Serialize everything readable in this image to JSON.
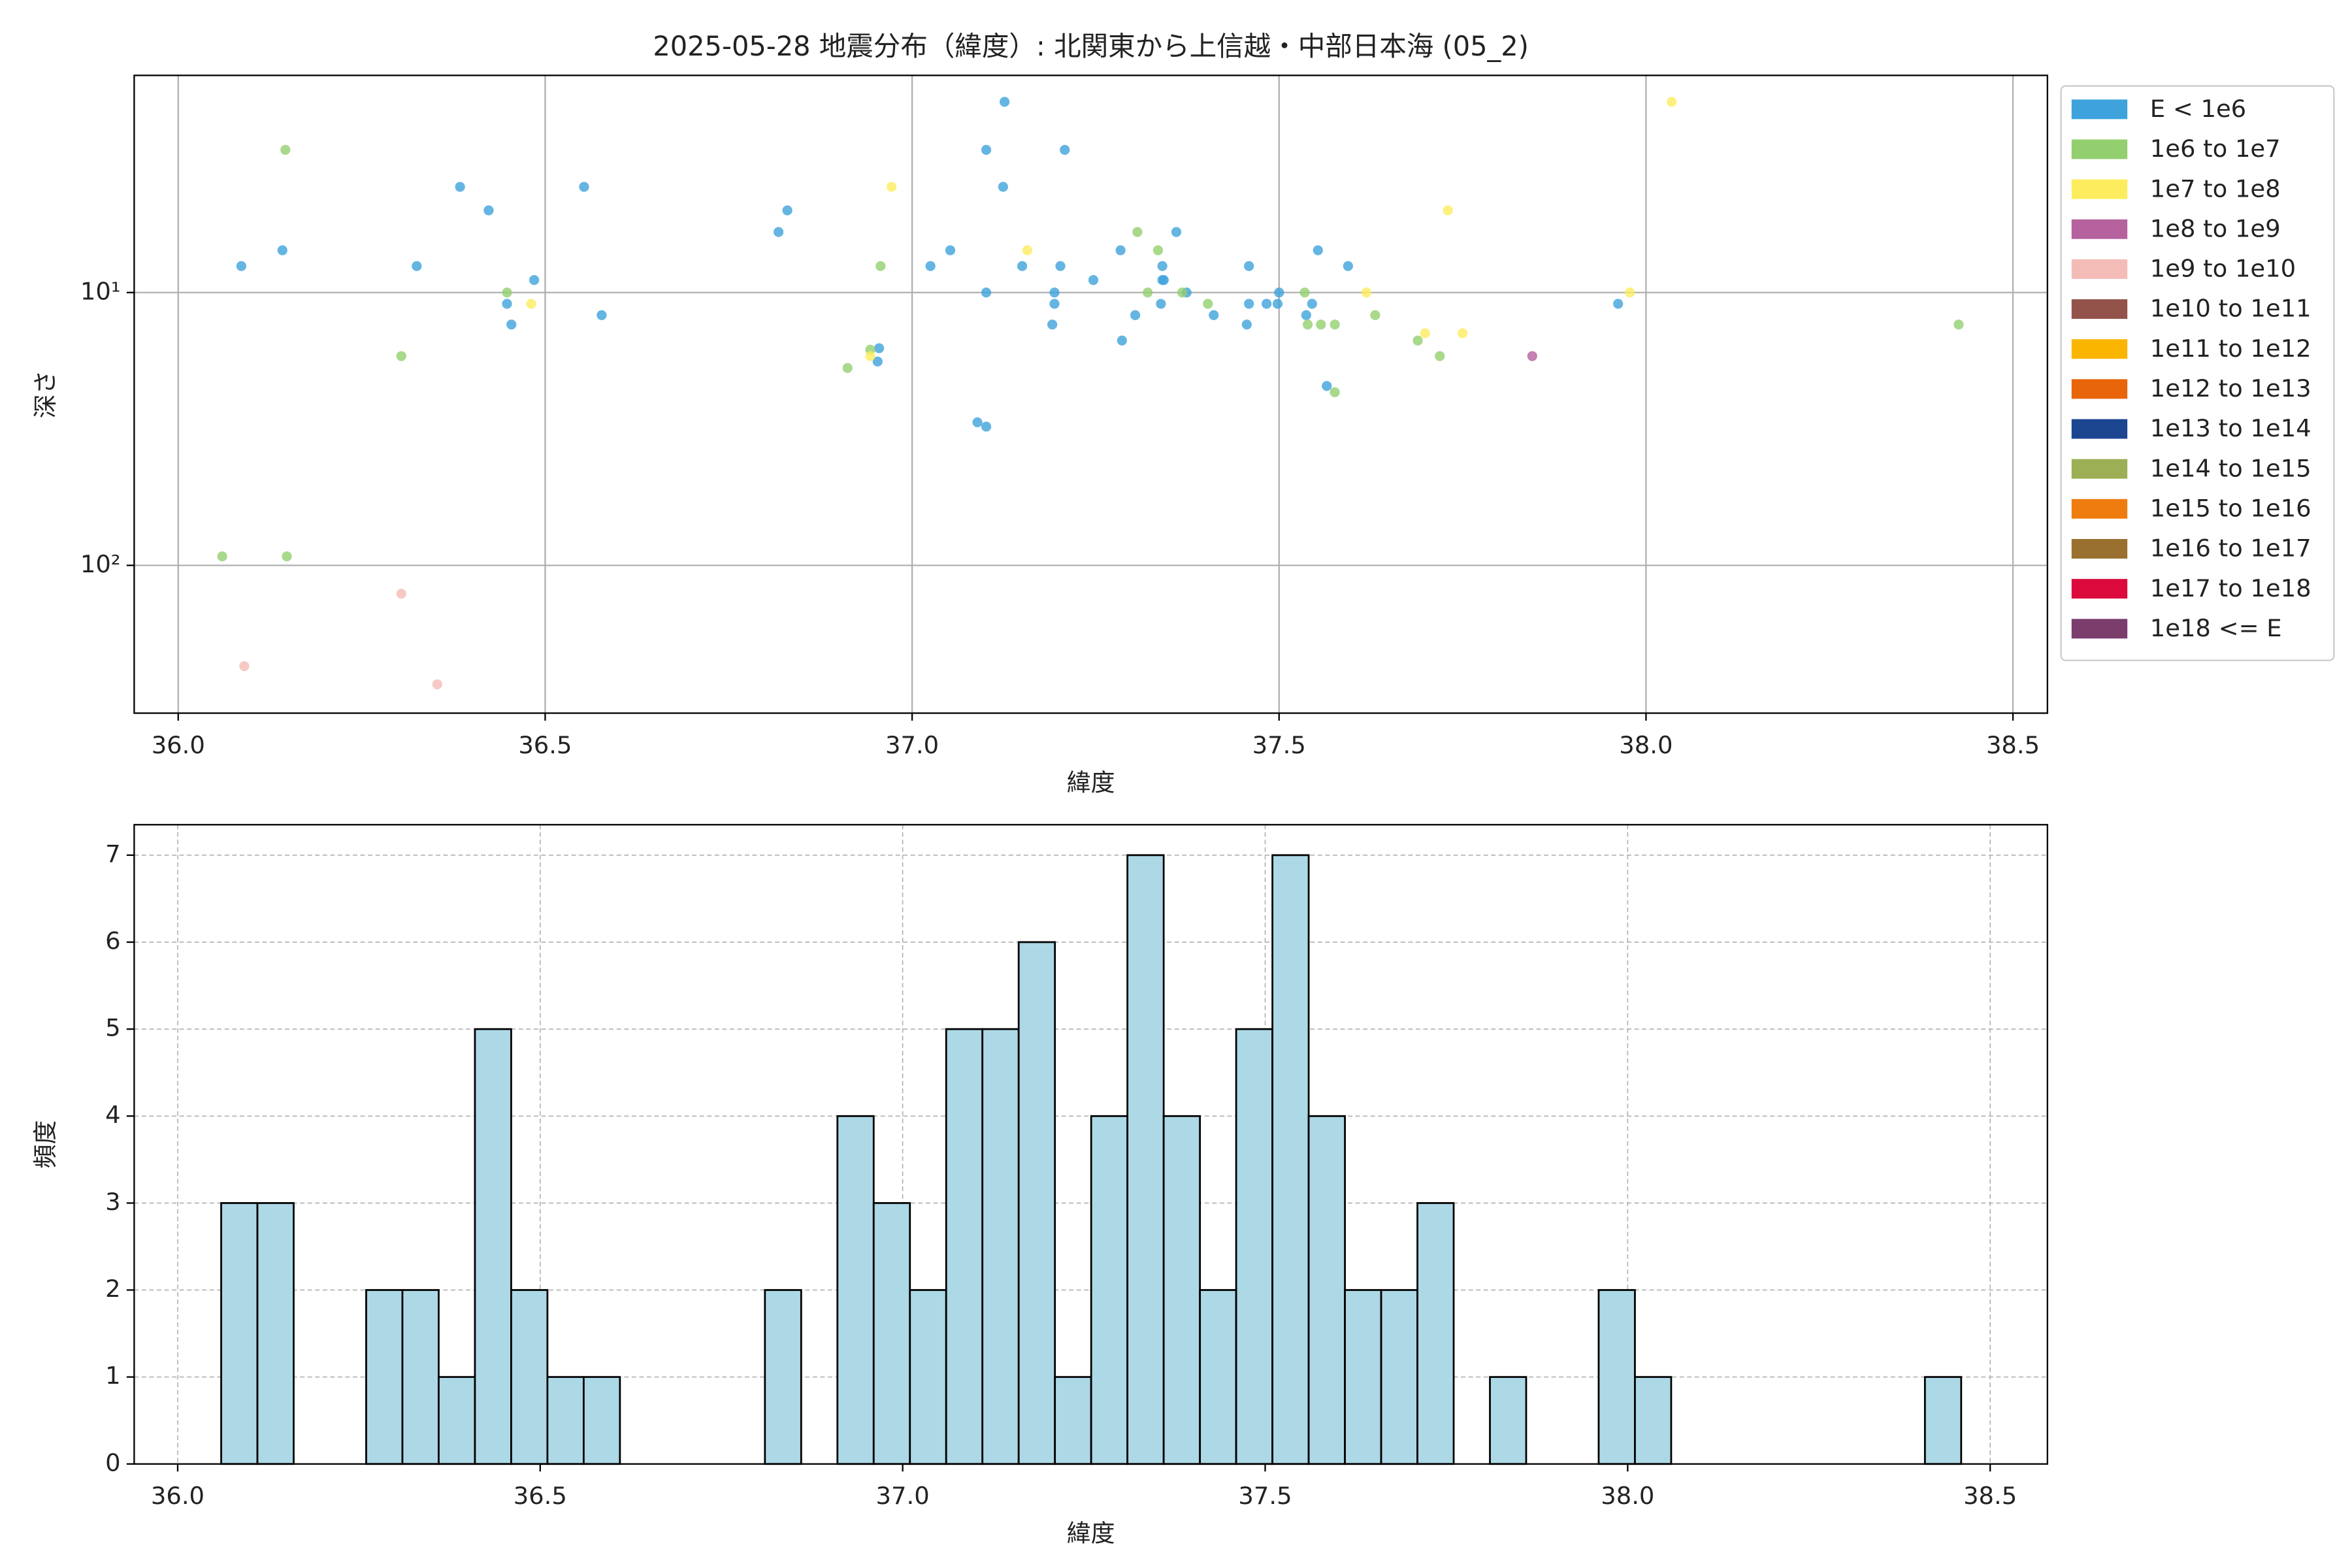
{
  "chart_data": [
    {
      "type": "scatter",
      "title": "2025-05-28 地震分布（緯度）: 北関東から上信越・中部日本海 (05_2)",
      "x_label": "緯度",
      "y_label": "深さ",
      "xlim": [
        35.94,
        38.547
      ],
      "ylim": [
        348,
        1.6
      ],
      "log_y": true,
      "grid": true,
      "legend": "outside upper right",
      "xticks": [
        {
          "value": 36,
          "label": "36.0"
        },
        {
          "value": 36.5,
          "label": "36.5"
        },
        {
          "value": 37,
          "label": "37.0"
        },
        {
          "value": 37.5,
          "label": "37.5"
        },
        {
          "value": 38,
          "label": "38.0"
        },
        {
          "value": 38.5,
          "label": "38.5"
        }
      ],
      "yticks": [
        {
          "value": 10,
          "label": "10¹"
        },
        {
          "value": 100,
          "label": "10²"
        }
      ],
      "series": [
        {
          "name": "E < 1e6",
          "color": "#3ea3dc",
          "x": [
            36.086,
            36.142,
            36.325,
            36.384,
            36.423,
            36.485,
            36.454,
            36.577,
            36.553,
            36.818,
            36.83,
            36.953,
            36.955,
            37.025,
            37.052,
            37.101,
            37.126,
            37.124,
            37.101,
            37.089,
            37.101,
            37.15,
            37.191,
            37.194,
            37.194,
            37.202,
            37.208,
            37.247,
            37.284,
            37.286,
            37.304,
            37.339,
            37.341,
            37.341,
            37.343,
            37.36,
            37.374,
            37.411,
            37.459,
            37.456,
            37.459,
            37.483,
            37.498,
            37.5,
            37.537,
            37.545,
            37.553,
            37.565,
            37.594,
            37.962,
            36.448
          ],
          "y": [
            8.0,
            7.0,
            8.0,
            4.1,
            5.0,
            9.0,
            13.1,
            12.1,
            4.1,
            6.0,
            5.0,
            17.9,
            16.0,
            8.0,
            7.0,
            3.0,
            2.0,
            4.1,
            10,
            29.9,
            31.0,
            8.0,
            13.1,
            11,
            10,
            8.0,
            3.0,
            9.0,
            7.0,
            15.0,
            12.1,
            11,
            8.0,
            9.0,
            9.0,
            6.0,
            10,
            12.1,
            8.0,
            13.1,
            11,
            11,
            11,
            10,
            12.1,
            11,
            7.0,
            22.0,
            8.0,
            11,
            11
          ]
        },
        {
          "name": "1e6 to 1e7",
          "color": "#93cf6e",
          "x": [
            36.146,
            36.06,
            36.148,
            36.304,
            36.448,
            36.912,
            36.943,
            36.957,
            37.307,
            37.335,
            37.321,
            37.403,
            37.368,
            37.535,
            37.539,
            37.557,
            37.576,
            37.576,
            37.631,
            37.689,
            37.719,
            38.426
          ],
          "y": [
            3.0,
            92.7,
            92.7,
            17.1,
            10,
            18.9,
            16.2,
            8.0,
            6.0,
            7.0,
            10,
            11,
            10,
            10,
            13.1,
            13.1,
            13.1,
            23.2,
            12.1,
            15.0,
            17.1,
            13.1
          ]
        },
        {
          "name": "1e7 to 1e8",
          "color": "#fdec5e",
          "x": [
            36.972,
            37.157,
            36.481,
            37.619,
            37.699,
            37.73,
            37.75,
            37.978,
            38.035,
            36.943
          ],
          "y": [
            4.1,
            7.0,
            11,
            10,
            14.1,
            5.0,
            14.1,
            10,
            2.0,
            17.1
          ]
        },
        {
          "name": "1e8 to 1e9",
          "color": "#b5629e",
          "x": [
            37.845
          ],
          "y": [
            17.1
          ]
        },
        {
          "name": "1e9 to 1e10",
          "color": "#f4bcb7",
          "x": [
            36.09,
            36.304,
            36.353
          ],
          "y": [
            234,
            127,
            273
          ]
        },
        {
          "name": "1e10 to 1e11",
          "color": "#93524a",
          "x": [],
          "y": []
        },
        {
          "name": "1e11 to 1e12",
          "color": "#f9b500",
          "x": [],
          "y": []
        },
        {
          "name": "1e12 to 1e13",
          "color": "#e8650a",
          "x": [],
          "y": []
        },
        {
          "name": "1e13 to 1e14",
          "color": "#1c4690",
          "x": [],
          "y": []
        },
        {
          "name": "1e14 to 1e15",
          "color": "#9caf55",
          "x": [],
          "y": []
        },
        {
          "name": "1e15 to 1e16",
          "color": "#ef7c0e",
          "x": [],
          "y": []
        },
        {
          "name": "1e16 to 1e17",
          "color": "#9a7030",
          "x": [],
          "y": []
        },
        {
          "name": "1e17 to 1e18",
          "color": "#dc0a3c",
          "x": [],
          "y": []
        },
        {
          "name": "1e18 <= E",
          "color": "#7a3d6c",
          "x": [],
          "y": []
        }
      ]
    },
    {
      "type": "histogram",
      "x_label": "緯度",
      "y_label": "頻度",
      "xlim": [
        35.94,
        38.579
      ],
      "ylim": [
        0,
        7.35
      ],
      "grid": true,
      "grid_style": "dashed",
      "color": "#add8e6",
      "edgecolor": "#000000",
      "xticks": [
        {
          "value": 36,
          "label": "36.0"
        },
        {
          "value": 36.5,
          "label": "36.5"
        },
        {
          "value": 37,
          "label": "37.0"
        },
        {
          "value": 37.5,
          "label": "37.5"
        },
        {
          "value": 38,
          "label": "38.0"
        },
        {
          "value": 38.5,
          "label": "38.5"
        }
      ],
      "yticks": [
        0,
        1,
        2,
        3,
        4,
        5,
        6,
        7
      ],
      "bins": [
        36.06,
        36.11,
        36.16,
        36.21,
        36.26,
        36.31,
        36.36,
        36.41,
        36.46,
        36.51,
        36.56,
        36.61,
        36.66,
        36.71,
        36.76,
        36.81,
        36.86,
        36.91,
        36.96,
        37.01,
        37.06,
        37.11,
        37.16,
        37.21,
        37.26,
        37.31,
        37.36,
        37.41,
        37.46,
        37.51,
        37.56,
        37.61,
        37.66,
        37.71,
        37.76,
        37.81,
        37.86,
        37.91,
        37.96,
        38.01,
        38.06,
        38.11,
        38.16,
        38.21,
        38.26,
        38.31,
        38.36,
        38.41,
        38.46
      ],
      "counts": [
        3,
        3,
        0,
        0,
        2,
        2,
        1,
        5,
        2,
        1,
        1,
        0,
        0,
        0,
        0,
        2,
        0,
        4,
        3,
        2,
        5,
        5,
        6,
        1,
        4,
        7,
        4,
        2,
        5,
        7,
        4,
        2,
        2,
        3,
        0,
        1,
        0,
        0,
        2,
        1,
        0,
        0,
        0,
        0,
        0,
        0,
        0,
        1
      ]
    }
  ]
}
